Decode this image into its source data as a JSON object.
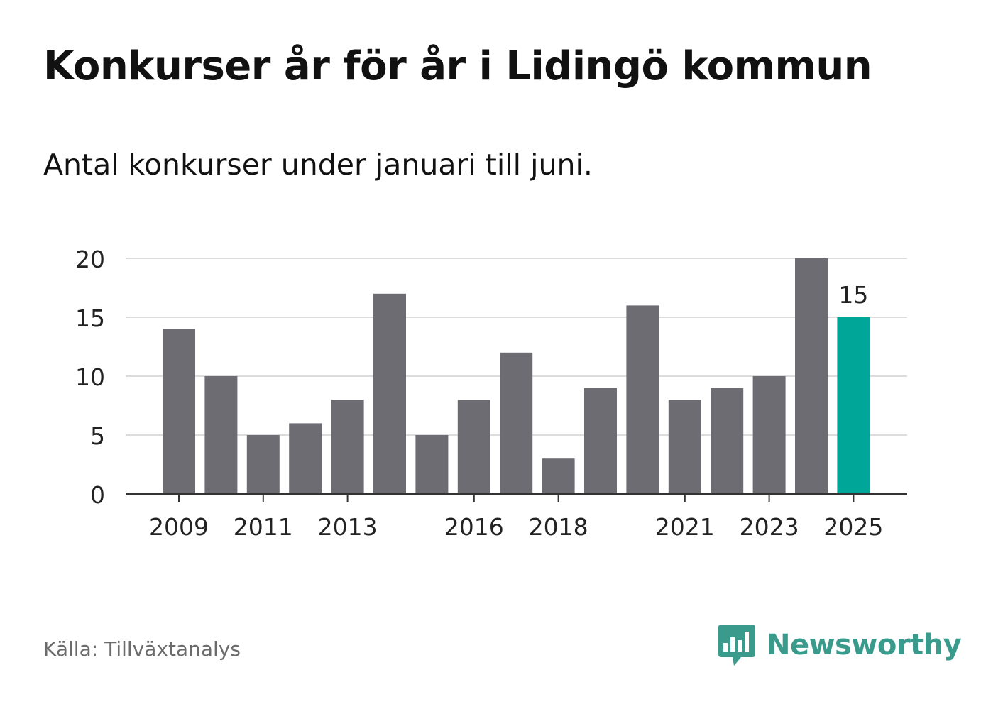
{
  "title": "Konkurser år för år i Lidingö kommun",
  "subtitle": "Antal konkurser under januari till juni.",
  "source": "Källa: Tillväxtanalys",
  "brand": "Newsworthy",
  "colors": {
    "bar": "#6d6c72",
    "highlight": "#00a698",
    "grid": "#dcdcdc",
    "axis": "#333333",
    "brand": "#3a9a8c"
  },
  "chart_data": {
    "type": "bar",
    "categories": [
      "2009",
      "2010",
      "2011",
      "2012",
      "2013",
      "2014",
      "2015",
      "2016",
      "2017",
      "2018",
      "2019",
      "2020",
      "2021",
      "2022",
      "2023",
      "2024",
      "2025"
    ],
    "values": [
      14,
      10,
      5,
      6,
      8,
      17,
      5,
      8,
      12,
      3,
      9,
      16,
      8,
      9,
      10,
      20,
      15
    ],
    "highlight_index": 16,
    "highlight_label": "15",
    "x_tick_labels": [
      "2009",
      "2011",
      "2013",
      "2016",
      "2018",
      "2021",
      "2023",
      "2025"
    ],
    "y_ticks": [
      "0",
      "5",
      "10",
      "15",
      "20"
    ],
    "ylim": [
      0,
      20
    ],
    "grid": true,
    "xlabel": "",
    "ylabel": ""
  }
}
